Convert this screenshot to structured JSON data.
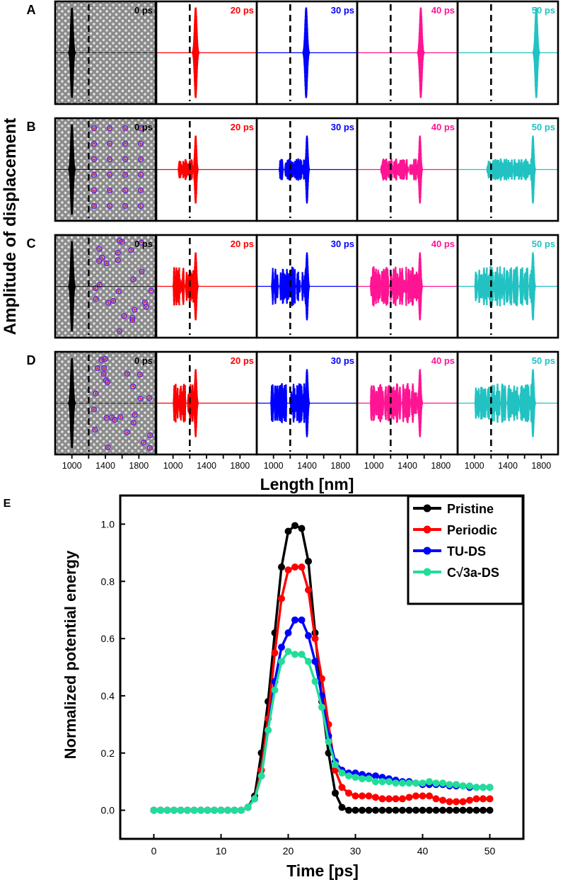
{
  "figure": {
    "panel_letters": [
      "A",
      "B",
      "C",
      "D",
      "E"
    ],
    "shared_ylabel": "Amplitude of displacement",
    "shared_xlabel": "Length [nm]",
    "x_ticks": [
      "1000",
      "1400",
      "1800"
    ],
    "time_labels": [
      "0 ps",
      "20 ps",
      "30 ps",
      "40 ps",
      "50 ps"
    ],
    "time_colors": [
      "#000000",
      "#ff0000",
      "#0000ff",
      "#ff1493",
      "#22c2c2"
    ],
    "defect_colors": {
      "ring": "#6a2bd9",
      "core": "#ff2222"
    }
  },
  "chart_data": [
    {
      "type": "line",
      "description_panels": "A-D: wave-packet displacement snapshots along the sample length",
      "xlabel": "Length [nm]",
      "ylabel": "Amplitude of displacement",
      "xlim": [
        800,
        2000
      ],
      "interface_position": 1200,
      "rows": [
        {
          "panel": "A",
          "structure": "Pristine",
          "packet_centers_nm": [
            1000,
            1270,
            1390,
            1560,
            1740
          ]
        },
        {
          "panel": "B",
          "structure": "Periodic",
          "packet_centers_nm": [
            1000,
            1270,
            1400,
            1550,
            1700
          ]
        },
        {
          "panel": "C",
          "structure": "TU-DS",
          "packet_centers_nm": [
            1000,
            1270,
            1400,
            1550,
            1700
          ]
        },
        {
          "panel": "D",
          "structure": "C√3a-DS",
          "packet_centers_nm": [
            1000,
            1270,
            1400,
            1550,
            1700
          ]
        }
      ],
      "snapshot_times": [
        "0 ps",
        "20 ps",
        "30 ps",
        "40 ps",
        "50 ps"
      ]
    },
    {
      "type": "line",
      "panel": "E",
      "xlabel": "Time [ps]",
      "ylabel": "Normalized potential energy",
      "xlim": [
        -5,
        55
      ],
      "ylim": [
        -0.1,
        1.1
      ],
      "x_ticks": [
        0,
        10,
        20,
        30,
        40,
        50
      ],
      "y_ticks": [
        0.0,
        0.2,
        0.4,
        0.6,
        0.8,
        1.0
      ],
      "x": [
        0,
        1,
        2,
        3,
        4,
        5,
        6,
        7,
        8,
        9,
        10,
        11,
        12,
        13,
        14,
        15,
        16,
        17,
        18,
        19,
        20,
        21,
        22,
        23,
        24,
        25,
        26,
        27,
        28,
        29,
        30,
        31,
        32,
        33,
        34,
        35,
        36,
        37,
        38,
        39,
        40,
        41,
        42,
        43,
        44,
        45,
        46,
        47,
        48,
        49,
        50
      ],
      "legend_position": "top-right",
      "series": [
        {
          "name": "Pristine",
          "color": "#000000",
          "values": [
            0,
            0,
            0,
            0,
            0,
            0,
            0,
            0,
            0,
            0,
            0,
            0,
            0,
            0,
            0.01,
            0.05,
            0.2,
            0.38,
            0.62,
            0.85,
            0.975,
            0.995,
            0.985,
            0.87,
            0.62,
            0.38,
            0.2,
            0.06,
            0.01,
            0,
            0,
            0,
            0,
            0,
            0,
            0,
            0,
            0,
            0,
            0,
            0,
            0,
            0,
            0,
            0,
            0,
            0,
            0,
            0,
            0,
            0
          ]
        },
        {
          "name": "Periodic",
          "color": "#ff0000",
          "values": [
            0,
            0,
            0,
            0,
            0,
            0,
            0,
            0,
            0,
            0,
            0,
            0,
            0,
            0,
            0.01,
            0.04,
            0.14,
            0.32,
            0.55,
            0.74,
            0.84,
            0.85,
            0.85,
            0.77,
            0.6,
            0.46,
            0.3,
            0.14,
            0.08,
            0.06,
            0.05,
            0.05,
            0.05,
            0.045,
            0.04,
            0.04,
            0.04,
            0.04,
            0.045,
            0.05,
            0.05,
            0.05,
            0.04,
            0.035,
            0.03,
            0.03,
            0.03,
            0.035,
            0.04,
            0.04,
            0.04
          ]
        },
        {
          "name": "TU-DS",
          "color": "#0000ff",
          "values": [
            0,
            0,
            0,
            0,
            0,
            0,
            0,
            0,
            0,
            0,
            0,
            0,
            0,
            0,
            0.01,
            0.04,
            0.12,
            0.28,
            0.45,
            0.57,
            0.62,
            0.665,
            0.665,
            0.61,
            0.52,
            0.4,
            0.26,
            0.17,
            0.14,
            0.13,
            0.13,
            0.125,
            0.12,
            0.12,
            0.115,
            0.11,
            0.105,
            0.1,
            0.1,
            0.095,
            0.09,
            0.09,
            0.09,
            0.09,
            0.085,
            0.085,
            0.085,
            0.08,
            0.08,
            0.08,
            0.08
          ]
        },
        {
          "name": "C√3a-DS",
          "color": "#22dd99",
          "values": [
            0,
            0,
            0,
            0,
            0,
            0,
            0,
            0,
            0,
            0,
            0,
            0,
            0,
            0,
            0.01,
            0.04,
            0.12,
            0.28,
            0.42,
            0.52,
            0.555,
            0.545,
            0.545,
            0.52,
            0.45,
            0.36,
            0.24,
            0.16,
            0.13,
            0.12,
            0.115,
            0.11,
            0.11,
            0.1,
            0.1,
            0.1,
            0.095,
            0.095,
            0.095,
            0.095,
            0.095,
            0.1,
            0.095,
            0.095,
            0.09,
            0.09,
            0.085,
            0.085,
            0.08,
            0.08,
            0.08
          ]
        }
      ]
    }
  ]
}
